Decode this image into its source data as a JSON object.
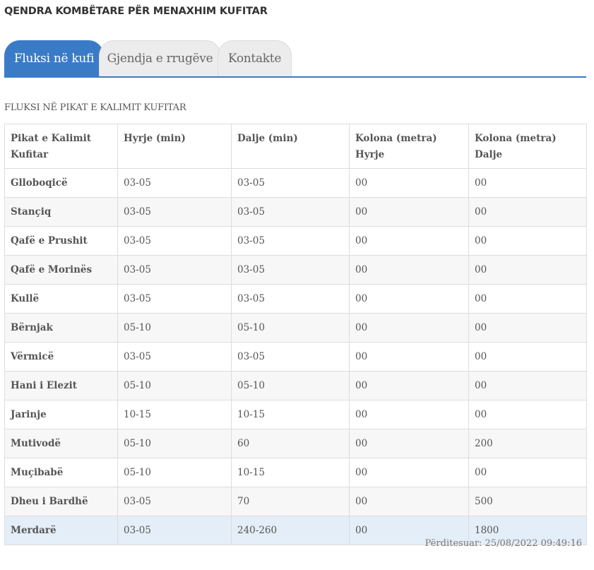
{
  "header": {
    "title": "QENDRA KOMBËTARE PËR MENAXHIM KUFITAR"
  },
  "tabs": [
    {
      "label": "Fluksi në kufi",
      "active": true
    },
    {
      "label": "Gjendja e rrugëve",
      "active": false
    },
    {
      "label": "Kontakte",
      "active": false
    }
  ],
  "section": {
    "title": "FLUKSI NË PIKAT E KALIMIT KUFITAR"
  },
  "table": {
    "headers": [
      "Pikat e Kalimit Kufitar",
      "Hyrje (min)",
      "Dalje (min)",
      "Kolona (metra) Hyrje",
      "Kolona (metra) Dalje"
    ],
    "rows": [
      [
        "Glloboqicë",
        "03-05",
        "03-05",
        "00",
        "00"
      ],
      [
        "Stançiq",
        "03-05",
        "03-05",
        "00",
        "00"
      ],
      [
        "Qafë e Prushit",
        "03-05",
        "03-05",
        "00",
        "00"
      ],
      [
        "Qafë e Morinës",
        "03-05",
        "03-05",
        "00",
        "00"
      ],
      [
        "Kullë",
        "03-05",
        "03-05",
        "00",
        "00"
      ],
      [
        "Bërnjak",
        "05-10",
        "05-10",
        "00",
        "00"
      ],
      [
        "Vërmicë",
        "03-05",
        "03-05",
        "00",
        "00"
      ],
      [
        "Hani i Elezit",
        "05-10",
        "05-10",
        "00",
        "00"
      ],
      [
        "Jarinje",
        "10-15",
        "10-15",
        "00",
        "00"
      ],
      [
        "Mutivodë",
        "05-10",
        "60",
        "00",
        "200"
      ],
      [
        "Muçibabë",
        "05-10",
        "10-15",
        "00",
        "00"
      ],
      [
        "Dheu i Bardhë",
        "03-05",
        "70",
        "00",
        "500"
      ],
      [
        "Merdarë",
        "03-05",
        "240-260",
        "00",
        "1800"
      ]
    ],
    "highlighted_row": "Merdarë"
  },
  "footer": {
    "updated": "Përditesuar: 25/08/2022 09:49:16"
  },
  "colors": {
    "accent": "#3a7bc8",
    "highlight_row": "#e4eef8",
    "inactive_tab": "#ececec"
  }
}
